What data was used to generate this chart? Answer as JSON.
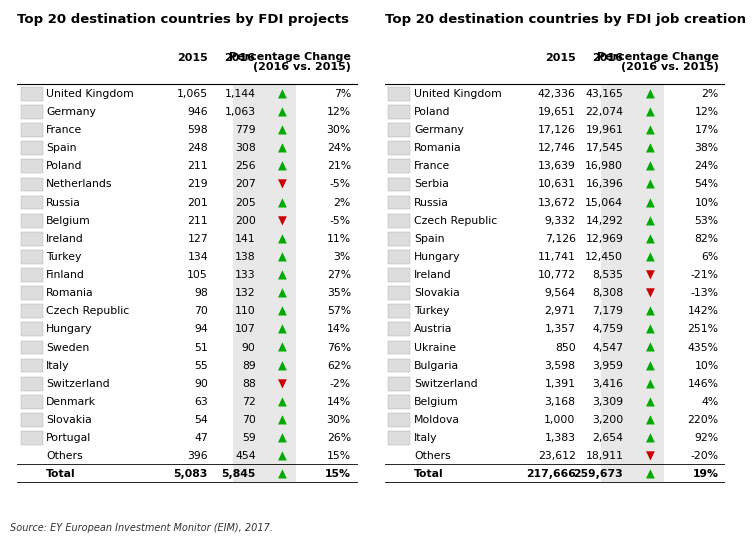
{
  "title_left": "Top 20 destination countries by FDI projects",
  "title_right": "Top 20 destination countries by FDI job creation",
  "source": "Source: EY European Investment Monitor (EIM), 2017.",
  "left_table": {
    "countries": [
      "United Kingdom",
      "Germany",
      "France",
      "Spain",
      "Poland",
      "Netherlands",
      "Russia",
      "Belgium",
      "Ireland",
      "Turkey",
      "Finland",
      "Romania",
      "Czech Republic",
      "Hungary",
      "Sweden",
      "Italy",
      "Switzerland",
      "Denmark",
      "Slovakia",
      "Portugal",
      "Others",
      "Total"
    ],
    "val2015": [
      "1,065",
      "946",
      "598",
      "248",
      "211",
      "219",
      "201",
      "211",
      "127",
      "134",
      "105",
      "98",
      "70",
      "94",
      "51",
      "55",
      "90",
      "63",
      "54",
      "47",
      "396",
      "5,083"
    ],
    "val2016": [
      "1,144",
      "1,063",
      "779",
      "308",
      "256",
      "207",
      "205",
      "200",
      "141",
      "138",
      "133",
      "132",
      "110",
      "107",
      "90",
      "89",
      "88",
      "72",
      "70",
      "59",
      "454",
      "5,845"
    ],
    "pct": [
      "7%",
      "12%",
      "30%",
      "24%",
      "21%",
      "-5%",
      "2%",
      "-5%",
      "11%",
      "3%",
      "27%",
      "35%",
      "57%",
      "14%",
      "76%",
      "62%",
      "-2%",
      "14%",
      "30%",
      "26%",
      "15%",
      "15%"
    ],
    "up": [
      true,
      true,
      true,
      true,
      true,
      false,
      true,
      false,
      true,
      true,
      true,
      true,
      true,
      true,
      true,
      true,
      false,
      true,
      true,
      true,
      true,
      true
    ]
  },
  "right_table": {
    "countries": [
      "United Kingdom",
      "Poland",
      "Germany",
      "Romania",
      "France",
      "Serbia",
      "Russia",
      "Czech Republic",
      "Spain",
      "Hungary",
      "Ireland",
      "Slovakia",
      "Turkey",
      "Austria",
      "Ukraine",
      "Bulgaria",
      "Switzerland",
      "Belgium",
      "Moldova",
      "Italy",
      "Others",
      "Total"
    ],
    "val2015": [
      "42,336",
      "19,651",
      "17,126",
      "12,746",
      "13,639",
      "10,631",
      "13,672",
      "9,332",
      "7,126",
      "11,741",
      "10,772",
      "9,564",
      "2,971",
      "1,357",
      "850",
      "3,598",
      "1,391",
      "3,168",
      "1,000",
      "1,383",
      "23,612",
      "217,666"
    ],
    "val2016": [
      "43,165",
      "22,074",
      "19,961",
      "17,545",
      "16,980",
      "16,396",
      "15,064",
      "14,292",
      "12,969",
      "12,450",
      "8,535",
      "8,308",
      "7,179",
      "4,759",
      "4,547",
      "3,959",
      "3,416",
      "3,309",
      "3,200",
      "2,654",
      "18,911",
      "259,673"
    ],
    "pct": [
      "2%",
      "12%",
      "17%",
      "38%",
      "24%",
      "54%",
      "10%",
      "53%",
      "82%",
      "6%",
      "-21%",
      "-13%",
      "142%",
      "251%",
      "435%",
      "10%",
      "146%",
      "4%",
      "220%",
      "92%",
      "-20%",
      "19%"
    ],
    "up": [
      true,
      true,
      true,
      true,
      true,
      true,
      true,
      true,
      true,
      true,
      false,
      false,
      true,
      true,
      true,
      true,
      true,
      true,
      true,
      true,
      false,
      true
    ]
  },
  "up_color": "#00aa00",
  "down_color": "#cc0000",
  "highlight_col_color": "#e8e8e8",
  "title_fontsize": 9.5,
  "table_fontsize": 7.8,
  "header_fontsize": 8.0,
  "source_fontsize": 7.0
}
